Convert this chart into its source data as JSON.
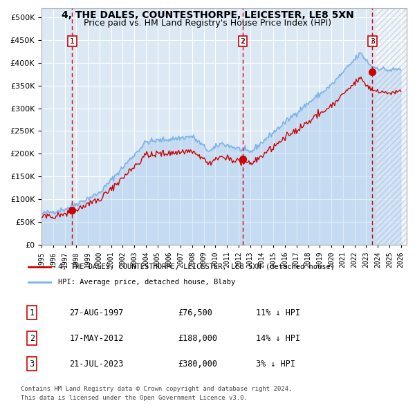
{
  "title1": "4, THE DALES, COUNTESTHORPE, LEICESTER, LE8 5XN",
  "title2": "Price paid vs. HM Land Registry's House Price Index (HPI)",
  "ylabel": "",
  "bg_color": "#dce9f5",
  "hatch_color": "#b0b8c8",
  "plot_bg": "#dce9f5",
  "hpi_color": "#7fb3e8",
  "price_color": "#cc0000",
  "sale_marker_color": "#cc0000",
  "vline_color": "#cc0000",
  "sale1_date": 1997.65,
  "sale1_price": 76500,
  "sale2_date": 2012.37,
  "sale2_price": 188000,
  "sale3_date": 2023.54,
  "sale3_price": 380000,
  "legend_label1": "4, THE DALES, COUNTESTHORPE, LEICESTER, LE8 5XN (detached house)",
  "legend_label2": "HPI: Average price, detached house, Blaby",
  "table_row1": [
    "1",
    "27-AUG-1997",
    "£76,500",
    "11% ↓ HPI"
  ],
  "table_row2": [
    "2",
    "17-MAY-2012",
    "£188,000",
    "14% ↓ HPI"
  ],
  "table_row3": [
    "3",
    "21-JUL-2023",
    "£380,000",
    "3% ↓ HPI"
  ],
  "footer1": "Contains HM Land Registry data © Crown copyright and database right 2024.",
  "footer2": "This data is licensed under the Open Government Licence v3.0.",
  "xmin": 1995.0,
  "xmax": 2026.5,
  "ymin": 0,
  "ymax": 520000
}
